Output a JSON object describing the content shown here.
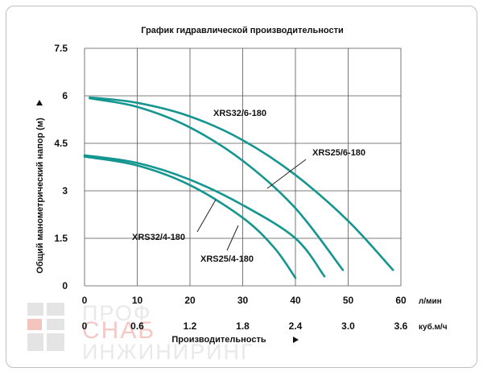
{
  "chart_data": {
    "type": "line",
    "title": "График гидравлической производительности",
    "ylabel": "Общий манометрический напор (м)",
    "xlabel": "Производительность",
    "x_unit_primary": "л/мин",
    "x_unit_secondary": "куб.м/ч",
    "ylim": [
      0,
      7.5
    ],
    "xlim": [
      0,
      60
    ],
    "y_ticks": [
      "0",
      "1.5",
      "3",
      "4.5",
      "6",
      "7.5"
    ],
    "x_ticks_primary": [
      "0",
      "10",
      "20",
      "30",
      "40",
      "50",
      "60"
    ],
    "x_ticks_secondary": [
      "0",
      "0.6",
      "1.2",
      "1.8",
      "2.4",
      "3.0",
      "3.6"
    ],
    "grid": true,
    "series": [
      {
        "name": "XRS32/6-180",
        "points": [
          [
            1,
            5.95
          ],
          [
            10,
            5.78
          ],
          [
            20,
            5.35
          ],
          [
            30,
            4.6
          ],
          [
            40,
            3.5
          ],
          [
            50,
            2.05
          ],
          [
            58.5,
            0.5
          ]
        ]
      },
      {
        "name": "XRS25/6-180",
        "points": [
          [
            1,
            5.92
          ],
          [
            10,
            5.65
          ],
          [
            20,
            5.0
          ],
          [
            30,
            3.95
          ],
          [
            40,
            2.45
          ],
          [
            49,
            0.5
          ]
        ]
      },
      {
        "name": "XRS32/4-180",
        "points": [
          [
            0,
            4.12
          ],
          [
            10,
            3.88
          ],
          [
            20,
            3.35
          ],
          [
            30,
            2.55
          ],
          [
            40,
            1.5
          ],
          [
            45.5,
            0.3
          ]
        ]
      },
      {
        "name": "XRS25/4-180",
        "points": [
          [
            0,
            4.08
          ],
          [
            10,
            3.8
          ],
          [
            20,
            3.18
          ],
          [
            30,
            2.15
          ],
          [
            36,
            1.2
          ],
          [
            40,
            0.25
          ]
        ]
      }
    ]
  },
  "watermark": {
    "line1": "ПРОФ",
    "line2": "СНАБ",
    "line3": "ИНЖИНИРИНГ"
  }
}
